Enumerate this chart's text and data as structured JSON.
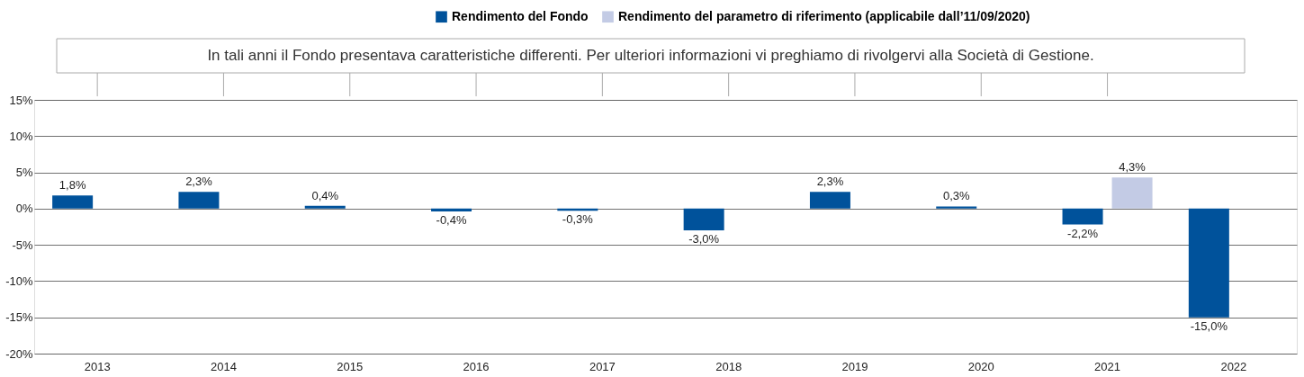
{
  "chart_data": {
    "type": "bar",
    "categories": [
      "2013",
      "2014",
      "2015",
      "2016",
      "2017",
      "2018",
      "2019",
      "2020",
      "2021",
      "2022"
    ],
    "series": [
      {
        "name": "Rendimento del Fondo",
        "color": "#00529b",
        "values": [
          1.8,
          2.3,
          0.4,
          -0.4,
          -0.3,
          -3.0,
          2.3,
          0.3,
          -2.2,
          -15.0
        ],
        "value_labels": [
          "1,8%",
          "2,3%",
          "0,4%",
          "-0,4%",
          "-0,3%",
          "-3,0%",
          "2,3%",
          "0,3%",
          "-2,2%",
          "-15,0%"
        ]
      },
      {
        "name": "Rendimento del parametro di riferimento (applicabile dall’11/09/2020)",
        "color": "#c3cbe5",
        "values": [
          null,
          null,
          null,
          null,
          null,
          null,
          null,
          null,
          4.3,
          null
        ],
        "value_labels": [
          null,
          null,
          null,
          null,
          null,
          null,
          null,
          null,
          "4,3%",
          null
        ]
      }
    ],
    "annotations": [
      "In tali anni il Fondo presentava caratteristiche differenti. Per ulteriori informazioni vi preghiamo di rivolgervi alla Società di Gestione."
    ],
    "ylim": [
      -20,
      15
    ],
    "yticks": [
      {
        "value": -20,
        "label": "-20%"
      },
      {
        "value": -15,
        "label": "-15%"
      },
      {
        "value": -10,
        "label": "-10%"
      },
      {
        "value": -5,
        "label": "-5%"
      },
      {
        "value": 0,
        "label": "0%"
      },
      {
        "value": 5,
        "label": "5%"
      },
      {
        "value": 10,
        "label": "10%"
      },
      {
        "value": 15,
        "label": "15%"
      }
    ],
    "grid": "y",
    "legend": "top right"
  }
}
